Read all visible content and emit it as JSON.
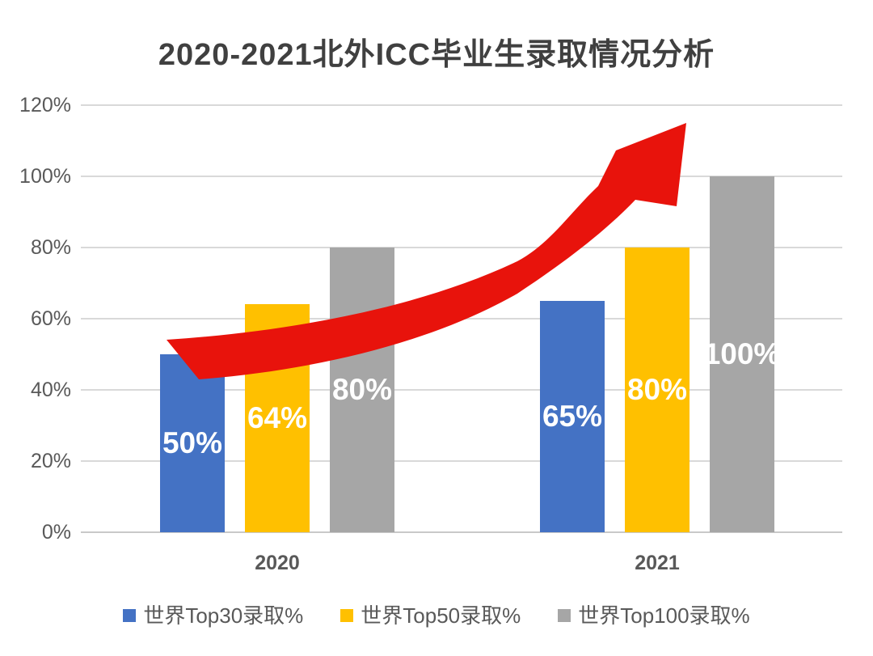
{
  "title": "2020-2021北外ICC毕业生录取情况分析",
  "colors": {
    "blue": "#4472C4",
    "yellow": "#FFC000",
    "gray": "#A6A6A6",
    "red_arrow": "#E8130C",
    "title_text": "#404040",
    "axis_text": "#595959",
    "gridline": "#D9D9D9",
    "bar_label_text": "#FFFFFF"
  },
  "chart_data": {
    "type": "bar",
    "categories": [
      "2020",
      "2021"
    ],
    "series": [
      {
        "name": "世界Top30录取%",
        "color_key": "blue",
        "values": [
          50,
          65
        ],
        "labels": [
          "50%",
          "65%"
        ]
      },
      {
        "name": "世界Top50录取%",
        "color_key": "yellow",
        "values": [
          64,
          80
        ],
        "labels": [
          "64%",
          "80%"
        ]
      },
      {
        "name": "世界Top100录取%",
        "color_key": "gray",
        "values": [
          80,
          100
        ],
        "labels": [
          "80%",
          "100%"
        ]
      }
    ],
    "y_ticks": [
      "0%",
      "20%",
      "40%",
      "60%",
      "80%",
      "100%",
      "120%"
    ],
    "y_tick_values": [
      0,
      20,
      40,
      60,
      80,
      100,
      120
    ],
    "ylim": [
      0,
      120
    ],
    "grid": true,
    "legend_position": "bottom",
    "annotation": "large red curved upward trend arrow from 2020 bars to above 2021 bars"
  }
}
